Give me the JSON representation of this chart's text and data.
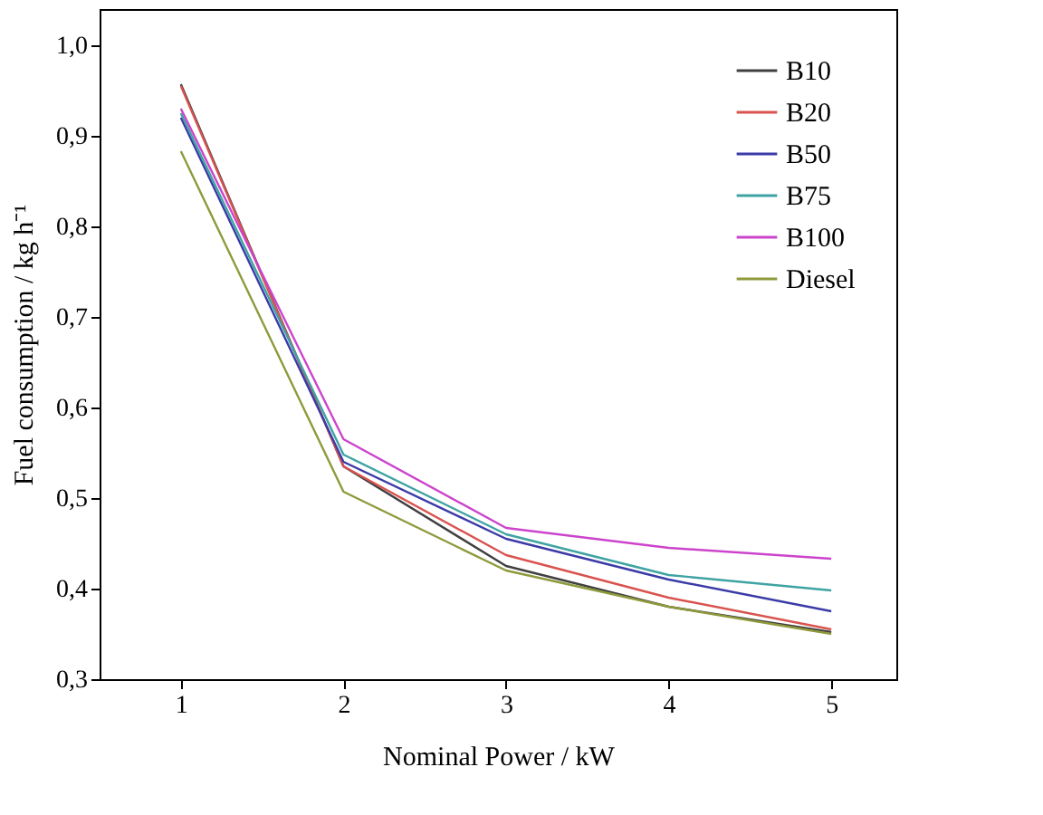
{
  "chart_data": {
    "type": "line",
    "xlabel": "Nominal Power / kW",
    "ylabel": "Fuel consumption / kg h⁻¹",
    "x": [
      1,
      2,
      3,
      4,
      5
    ],
    "xlim": [
      0.5,
      5.4
    ],
    "xticks": [
      1,
      2,
      3,
      4,
      5
    ],
    "ylim": [
      0.3,
      1.04
    ],
    "yticks": [
      {
        "value": 0.3,
        "label": "0,3"
      },
      {
        "value": 0.4,
        "label": "0,4"
      },
      {
        "value": 0.5,
        "label": "0,5"
      },
      {
        "value": 0.6,
        "label": "0,6"
      },
      {
        "value": 0.7,
        "label": "0,7"
      },
      {
        "value": 0.8,
        "label": "0,8"
      },
      {
        "value": 0.9,
        "label": "0,9"
      },
      {
        "value": 1.0,
        "label": "1,0"
      }
    ],
    "grid": false,
    "legend": "top right",
    "marker": "none",
    "line_style": "solid",
    "series": [
      {
        "name": "B10",
        "color": "#404040",
        "values": [
          0.957,
          0.535,
          0.425,
          0.38,
          0.352
        ]
      },
      {
        "name": "B20",
        "color": "#d9534f",
        "values": [
          0.955,
          0.535,
          0.437,
          0.39,
          0.355
        ]
      },
      {
        "name": "B50",
        "color": "#3b3ba8",
        "values": [
          0.92,
          0.54,
          0.455,
          0.41,
          0.375
        ]
      },
      {
        "name": "B75",
        "color": "#3fa3a3",
        "values": [
          0.925,
          0.548,
          0.46,
          0.415,
          0.398
        ]
      },
      {
        "name": "B100",
        "color": "#cc44cc",
        "values": [
          0.93,
          0.565,
          0.467,
          0.445,
          0.433
        ]
      },
      {
        "name": "Diesel",
        "color": "#8f9a3c",
        "values": [
          0.883,
          0.507,
          0.42,
          0.38,
          0.35
        ]
      }
    ]
  }
}
